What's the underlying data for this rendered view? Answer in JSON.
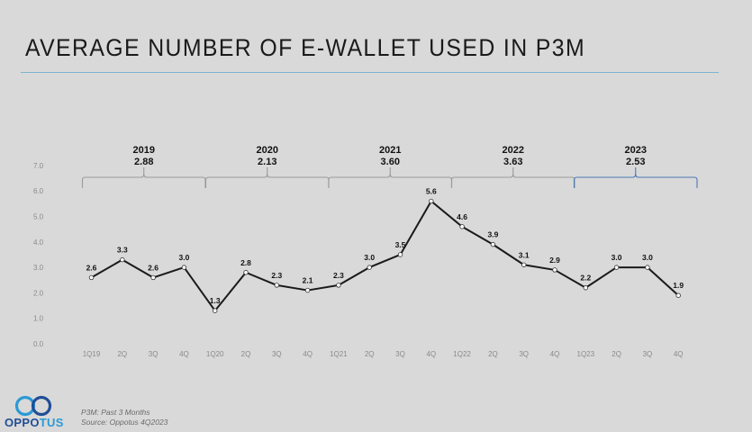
{
  "slide": {
    "title": "AVERAGE NUMBER OF E-WALLET USED IN P3M",
    "footnote_1": "P3M: Past 3 Months",
    "footnote_2": "Source: Oppotus 4Q2023",
    "logo": {
      "part1": "OPPO",
      "part2": "TUS",
      "icon": "infinity-rings-icon"
    }
  },
  "colors": {
    "background": "#d9d9d9",
    "line": "#1a1a1a",
    "bracket": "#9a9a9a",
    "bracket_highlight": "#4a7ab5",
    "rule": "#7fb3d0",
    "logo_dark": "#1f4e96",
    "logo_light": "#2b9ad6"
  },
  "chart_data": {
    "type": "line",
    "title": "AVERAGE NUMBER OF E-WALLET USED IN P3M",
    "xlabel": "",
    "ylabel": "",
    "ylim": [
      0,
      7
    ],
    "yticks": [
      "0.0",
      "1.0",
      "2.0",
      "3.0",
      "4.0",
      "5.0",
      "6.0",
      "7.0"
    ],
    "grid": false,
    "categories": [
      "1Q19",
      "2Q",
      "3Q",
      "4Q",
      "1Q20",
      "2Q",
      "3Q",
      "4Q",
      "1Q21",
      "2Q",
      "3Q",
      "4Q",
      "1Q22",
      "2Q",
      "3Q",
      "4Q",
      "1Q23",
      "2Q",
      "3Q",
      "4Q"
    ],
    "series": [
      {
        "name": "Average number of e-wallet used",
        "values": [
          2.6,
          3.3,
          2.6,
          3.0,
          1.3,
          2.8,
          2.3,
          2.1,
          2.3,
          3.0,
          3.5,
          5.6,
          4.6,
          3.9,
          3.1,
          2.9,
          2.2,
          3.0,
          3.0,
          1.9
        ]
      }
    ],
    "data_labels": [
      "2.6",
      "3.3",
      "2.6",
      "3.0",
      "1.3",
      "2.8",
      "2.3",
      "2.1",
      "2.3",
      "3.0",
      "3.5",
      "5.6",
      "4.6",
      "3.9",
      "3.1",
      "2.9",
      "2.2",
      "3.0",
      "3.0",
      "1.9"
    ],
    "annotations": [
      {
        "year": "2019",
        "average": "2.88"
      },
      {
        "year": "2020",
        "average": "2.13"
      },
      {
        "year": "2021",
        "average": "3.60"
      },
      {
        "year": "2022",
        "average": "3.63"
      },
      {
        "year": "2023",
        "average": "2.53",
        "highlight": true
      }
    ],
    "legend": "none"
  }
}
